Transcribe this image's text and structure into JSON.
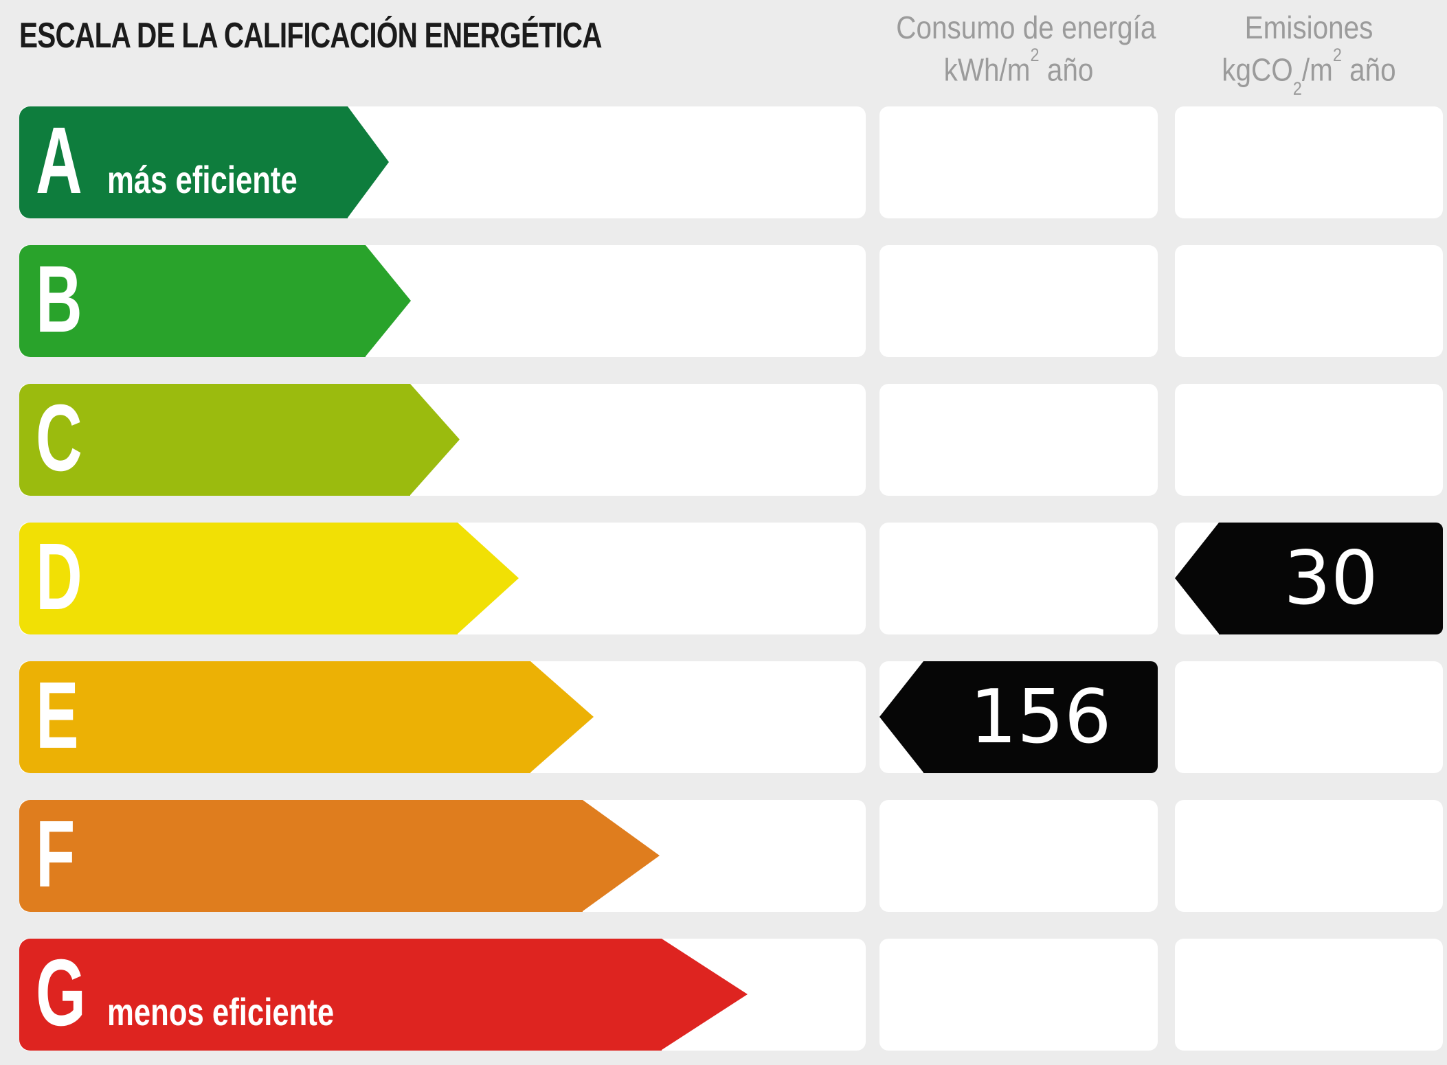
{
  "title": "ESCALA DE LA CALIFICACIÓN ENERGÉTICA",
  "columns": {
    "consumo": {
      "title": "Consumo de energía",
      "unit_base": "kWh/m",
      "unit_sup": "2",
      "unit_tail": " año"
    },
    "emisiones": {
      "title": "Emisiones",
      "unit_base": "kgCO",
      "unit_sub": "2",
      "unit_mid": "/m",
      "unit_sup": "2",
      "unit_tail": " año"
    }
  },
  "rows": [
    {
      "letter": "A",
      "label": "más eficiente",
      "color": "#0E7D3D",
      "body_width": 478,
      "tip_width": 60,
      "consumo": null,
      "emisiones": null
    },
    {
      "letter": "B",
      "label": null,
      "color": "#29A32B",
      "body_width": 504,
      "tip_width": 66,
      "consumo": null,
      "emisiones": null
    },
    {
      "letter": "C",
      "label": null,
      "color": "#9BBB0E",
      "body_width": 569,
      "tip_width": 72,
      "consumo": null,
      "emisiones": null
    },
    {
      "letter": "D",
      "label": null,
      "color": "#F1E005",
      "body_width": 638,
      "tip_width": 89,
      "consumo": null,
      "emisiones": "30"
    },
    {
      "letter": "E",
      "label": null,
      "color": "#ECB105",
      "body_width": 744,
      "tip_width": 92,
      "consumo": "156",
      "emisiones": null
    },
    {
      "letter": "F",
      "label": null,
      "color": "#DF7D1E",
      "body_width": 820,
      "tip_width": 112,
      "consumo": null,
      "emisiones": null
    },
    {
      "letter": "G",
      "label": "menos eficiente",
      "color": "#DE2420",
      "body_width": 935,
      "tip_width": 125,
      "consumo": null,
      "emisiones": null
    }
  ],
  "theme": {
    "background": "#ECECEC",
    "cell_white": "#FFFFFF",
    "value_arrow_black": "#060606",
    "title_color": "#1B1B1B",
    "header_gray": "#9B9B9B",
    "bar_text_white": "#FFFFFF"
  },
  "chart_data": {
    "type": "bar",
    "title": "ESCALA DE LA CALIFICACIÓN ENERGÉTICA",
    "categories": [
      "A",
      "B",
      "C",
      "D",
      "E",
      "F",
      "G"
    ],
    "category_labels": {
      "A": "más eficiente",
      "G": "menos eficiente"
    },
    "bar_colors": [
      "#0E7D3D",
      "#29A32B",
      "#9BBB0E",
      "#F1E005",
      "#ECB105",
      "#DF7D1E",
      "#DE2420"
    ],
    "bar_relative_widths_pct": [
      43.7,
      46.3,
      52.0,
      59.0,
      67.9,
      75.6,
      86.0
    ],
    "columns": [
      "Consumo de energía kWh/m² año",
      "Emisiones kgCO₂/m² año"
    ],
    "annotations": [
      {
        "column": "Consumo de energía kWh/m² año",
        "rating": "E",
        "value": 156
      },
      {
        "column": "Emisiones kgCO₂/m² año",
        "rating": "D",
        "value": 30
      }
    ],
    "legend_position": "none",
    "grid": false
  }
}
